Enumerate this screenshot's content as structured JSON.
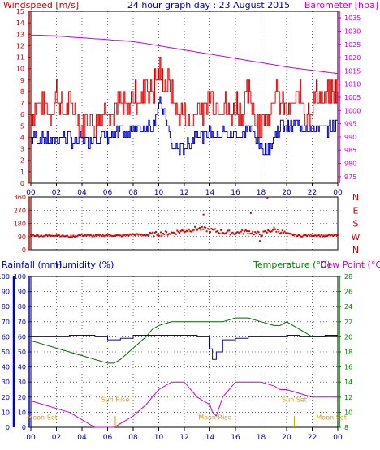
{
  "header": {
    "left_label": "Windspeed [m/s]",
    "title": "24 hour graph day : 23 August 2015",
    "right_label": "Barometer [hpa]"
  },
  "bottom_header": {
    "rainfall_label": "Rainfall (mm)",
    "humidity_label": "Humidity (%)",
    "temperature_label": "Temperature (°C)",
    "dewpoint_label": "Dew Point (°C)"
  },
  "colors": {
    "wind_gust": "#e00000",
    "wind_avg": "#0000cc",
    "barometer": "#cc00cc",
    "direction": "#e00000",
    "temperature": "#006600",
    "humidity": "#0000cc",
    "dewpoint": "#cc00cc",
    "rain": "#0000cc",
    "sun_moon": "#d4a000",
    "axis_left": "#d00000",
    "axis_right": "#cc00cc",
    "axis_green": "#008000",
    "axis_blue": "#0000cc",
    "grid": "#000000"
  },
  "x_ticks": [
    "00",
    "02",
    "04",
    "06",
    "08",
    "10",
    "12",
    "14",
    "16",
    "18",
    "20",
    "22",
    "00"
  ],
  "chart_data": [
    {
      "type": "line",
      "panel": "wind-barometer",
      "x": [
        0,
        0.5,
        1,
        1.5,
        2,
        2.5,
        3,
        3.5,
        4,
        4.5,
        5,
        5.5,
        6,
        6.5,
        7,
        7.5,
        8,
        8.5,
        9,
        9.5,
        10,
        10.5,
        11,
        11.5,
        12,
        12.5,
        13,
        13.5,
        14,
        14.5,
        15,
        15.5,
        16,
        16.5,
        17,
        17.5,
        18,
        18.5,
        19,
        19.5,
        20,
        20.5,
        21,
        21.5,
        22,
        22.5,
        23,
        23.5,
        24
      ],
      "y_left_ticks": [
        0,
        1,
        2,
        3,
        4,
        5,
        6,
        7,
        8,
        9,
        10,
        11,
        12,
        13,
        14,
        15
      ],
      "y_right_ticks": [
        975,
        980,
        985,
        990,
        995,
        1000,
        1005,
        1010,
        1015,
        1020,
        1025,
        1030,
        1035
      ],
      "ylim_left": [
        0,
        15
      ],
      "ylim_right": [
        972.5,
        1037.5
      ],
      "series": [
        {
          "name": "Windspeed",
          "role": "gust",
          "values": [
            6,
            7,
            7,
            6,
            8,
            6,
            7,
            6,
            5,
            6,
            5,
            6,
            7,
            6,
            7,
            6,
            8,
            7,
            9,
            8,
            10,
            9,
            8,
            6,
            6,
            5,
            7,
            6,
            8,
            7,
            7,
            6,
            7,
            6,
            8,
            6,
            5,
            6,
            8,
            7,
            6,
            7,
            8,
            6,
            7,
            8,
            7,
            8,
            8
          ]
        },
        {
          "name": "",
          "role": "average",
          "values": [
            4,
            4,
            4,
            3.5,
            4,
            4,
            4,
            3.5,
            4,
            3.5,
            4,
            4,
            4,
            4,
            4.5,
            4,
            5,
            4.5,
            5,
            5,
            7,
            6,
            3,
            3,
            3,
            3.5,
            4.5,
            4,
            4.5,
            4,
            4.5,
            4,
            4.5,
            4,
            5,
            4,
            3,
            3,
            4,
            5,
            5,
            5,
            5,
            5,
            4.5,
            5,
            4.5,
            5,
            5
          ]
        },
        {
          "name": "Barometer",
          "role": "pressure",
          "values": [
            1028.5,
            1028.5,
            1028.4,
            1028.3,
            1028.2,
            1028.0,
            1027.8,
            1027.6,
            1027.5,
            1027.3,
            1027.1,
            1027.0,
            1026.8,
            1026.6,
            1026.5,
            1026.3,
            1026.0,
            1025.7,
            1025.3,
            1024.9,
            1024.5,
            1024.1,
            1023.7,
            1023.3,
            1022.9,
            1022.5,
            1022.1,
            1021.7,
            1021.3,
            1020.9,
            1020.5,
            1020.1,
            1019.7,
            1019.3,
            1018.9,
            1018.5,
            1018.1,
            1017.7,
            1017.3,
            1016.9,
            1016.5,
            1016.1,
            1015.8,
            1015.5,
            1015.2,
            1014.9,
            1014.6,
            1014.3,
            1014.0
          ]
        }
      ]
    },
    {
      "type": "scatter",
      "panel": "wind-direction",
      "y_ticks": [
        0,
        90,
        180,
        270,
        360
      ],
      "compass_labels": [
        "N",
        "W",
        "S",
        "E",
        "N"
      ],
      "ylim": [
        0,
        360
      ],
      "x": [
        0,
        1,
        2,
        3,
        4,
        5,
        6,
        7,
        8,
        9,
        10,
        11,
        12,
        13,
        14,
        15,
        16,
        17,
        18,
        19,
        20,
        21,
        22,
        23,
        24
      ],
      "values": [
        100,
        95,
        100,
        90,
        100,
        95,
        100,
        95,
        105,
        100,
        110,
        115,
        130,
        145,
        135,
        120,
        115,
        125,
        105,
        140,
        110,
        95,
        100,
        95,
        100
      ],
      "outliers": [
        {
          "x": 18.5,
          "y": 355
        },
        {
          "x": 17.2,
          "y": 250
        },
        {
          "x": 13.5,
          "y": 240
        },
        {
          "x": 17.9,
          "y": 60
        }
      ]
    },
    {
      "type": "line",
      "panel": "temperature-humidity-rain",
      "x": [
        0,
        1,
        2,
        3,
        4,
        5,
        6,
        6.5,
        7,
        8,
        9,
        9.5,
        10,
        11,
        12,
        13,
        14,
        14.2,
        14.5,
        15,
        16,
        17,
        18,
        19,
        19.5,
        20,
        21,
        22,
        23,
        24
      ],
      "y_left_ticks": [
        0,
        10,
        20,
        30,
        40,
        50,
        60,
        70,
        80,
        90,
        100
      ],
      "y_right_ticks": [
        8,
        10,
        12,
        14,
        16,
        18,
        20,
        22,
        24,
        26,
        28
      ],
      "ylim_left": [
        0,
        100
      ],
      "ylim_right": [
        8,
        28
      ],
      "series": [
        {
          "name": "Temperature",
          "values": [
            19.5,
            19,
            18.5,
            18,
            17.5,
            17,
            16.5,
            16.5,
            17,
            18.5,
            20,
            21,
            21.5,
            22,
            22,
            22,
            22,
            22,
            22,
            22,
            22.5,
            22.5,
            22,
            21.5,
            21.5,
            22,
            21,
            20,
            20,
            20
          ]
        },
        {
          "name": "Humidity",
          "values": [
            60,
            60,
            60,
            61,
            61,
            60,
            58,
            58,
            59,
            61,
            61,
            61,
            61,
            61,
            61,
            60,
            52,
            45,
            50,
            58,
            59,
            60,
            60,
            60,
            60,
            61,
            60,
            60,
            61,
            61
          ]
        },
        {
          "name": "Dew Point",
          "values": [
            11.5,
            11,
            10.5,
            10,
            9,
            8,
            8,
            8,
            8.5,
            9.5,
            11,
            12,
            13,
            14,
            14,
            12,
            11,
            10,
            9.5,
            12,
            14,
            14,
            14,
            13.5,
            13,
            13,
            12.5,
            12,
            12,
            12
          ]
        }
      ],
      "rain_mm": 0,
      "sun_rise": {
        "label": "Sun Rise",
        "x": 6.6
      },
      "sun_set": {
        "label": "Sun Set",
        "x": 20.6
      },
      "moon_set": {
        "label": "Moon Set",
        "x": 0.9
      },
      "moon_rise": {
        "label": "Moon Rise",
        "x": 14.4
      },
      "moon_set_2": {
        "label": "Moon Set",
        "x": 23.5
      },
      "markers": [
        {
          "x": 6.6
        },
        {
          "x": 20.6
        }
      ]
    }
  ]
}
